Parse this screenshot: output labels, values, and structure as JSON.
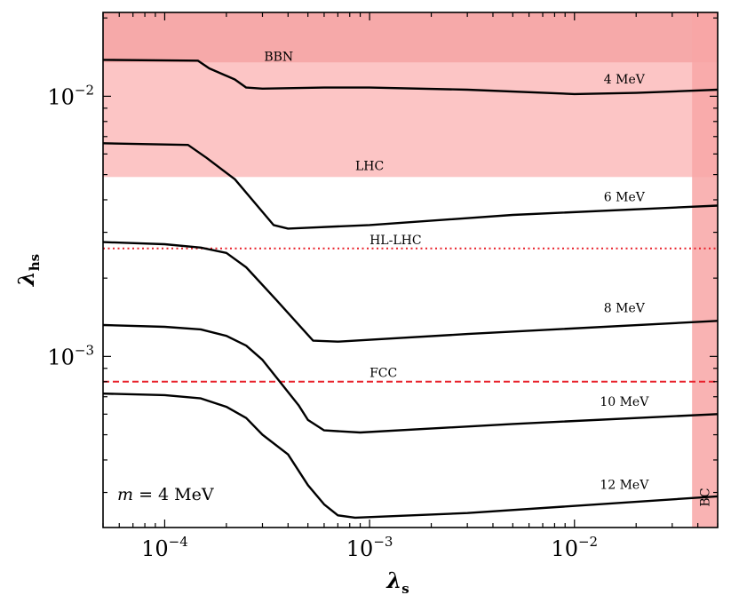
{
  "chart_data": {
    "type": "line",
    "xscale": "log",
    "yscale": "log",
    "xlim": [
      5e-05,
      0.05
    ],
    "ylim": [
      0.00022,
      0.021
    ],
    "xlabel_main": "λ",
    "xlabel_sub": "s",
    "ylabel_main": "λ",
    "ylabel_sub": "hs",
    "annotation": {
      "prefix": "m",
      "suffix": " = 4 MeV"
    },
    "x_ticks": [
      {
        "value": 0.0001,
        "base": "10",
        "exp": "−4"
      },
      {
        "value": 0.001,
        "base": "10",
        "exp": "−3"
      },
      {
        "value": 0.01,
        "base": "10",
        "exp": "−2"
      }
    ],
    "y_ticks": [
      {
        "value": 0.001,
        "base": "10",
        "exp": "−3"
      },
      {
        "value": 0.01,
        "base": "10",
        "exp": "−2"
      }
    ],
    "regions": [
      {
        "name": "BBN",
        "y_min": 0.0049,
        "y_max": 0.021,
        "color": "#f59a9a",
        "label_x": 0.00036,
        "label_y": 0.0137
      },
      {
        "name": "LHC",
        "y_min": 0.0049,
        "y_max": 0.0135,
        "color": "#fdcaca",
        "label_x": 0.001,
        "label_y": 0.0052
      },
      {
        "name": "BC",
        "x_min": 0.0375,
        "x_max": 0.05,
        "color": "#f8a6a6"
      }
    ],
    "limit_lines": [
      {
        "name": "HL-LHC",
        "y": 0.0026,
        "style": "dotted",
        "color": "#e8202a"
      },
      {
        "name": "FCC",
        "y": 0.0008,
        "style": "dashed",
        "color": "#e8202a"
      }
    ],
    "series": [
      {
        "name": "4 MeV",
        "label_x": 0.0175,
        "label_y": 0.0112,
        "x": [
          5e-05,
          0.000145,
          0.000165,
          0.00022,
          0.00025,
          0.0003,
          0.0006,
          0.001,
          0.003,
          0.01,
          0.02,
          0.05
        ],
        "y": [
          0.0138,
          0.0137,
          0.0128,
          0.0116,
          0.0108,
          0.0107,
          0.0108,
          0.0108,
          0.0106,
          0.0102,
          0.0103,
          0.0106
        ]
      },
      {
        "name": "6 MeV",
        "label_x": 0.0175,
        "label_y": 0.00395,
        "x": [
          5e-05,
          0.00013,
          0.00016,
          0.00022,
          0.00034,
          0.0004,
          0.001,
          0.005,
          0.05
        ],
        "y": [
          0.0066,
          0.0065,
          0.0058,
          0.0048,
          0.0032,
          0.0031,
          0.0032,
          0.0035,
          0.0038
        ]
      },
      {
        "name": "8 MeV",
        "label_x": 0.0175,
        "label_y": 0.00148,
        "x": [
          5e-05,
          0.0001,
          0.00015,
          0.0002,
          0.00025,
          0.00035,
          0.00053,
          0.0007,
          0.003,
          0.05
        ],
        "y": [
          0.00275,
          0.0027,
          0.00262,
          0.0025,
          0.0022,
          0.00165,
          0.00115,
          0.00114,
          0.00122,
          0.00137
        ]
      },
      {
        "name": "10 MeV",
        "label_x": 0.0175,
        "label_y": 0.000645,
        "x": [
          5e-05,
          0.0001,
          0.00015,
          0.0002,
          0.00025,
          0.0003,
          0.00045,
          0.0005,
          0.0006,
          0.0009,
          0.005,
          0.05
        ],
        "y": [
          0.00132,
          0.0013,
          0.00127,
          0.0012,
          0.0011,
          0.00097,
          0.00065,
          0.00057,
          0.00052,
          0.00051,
          0.00055,
          0.0006
        ]
      },
      {
        "name": "12 MeV",
        "label_x": 0.0175,
        "label_y": 0.00031,
        "x": [
          5e-05,
          0.0001,
          0.00015,
          0.0002,
          0.00025,
          0.0003,
          0.0004,
          0.0005,
          0.0006,
          0.0007,
          0.00085,
          0.003,
          0.05
        ],
        "y": [
          0.00072,
          0.00071,
          0.00069,
          0.00064,
          0.00058,
          0.0005,
          0.00042,
          0.00032,
          0.00027,
          0.000245,
          0.00024,
          0.00025,
          0.00029
        ]
      }
    ]
  }
}
